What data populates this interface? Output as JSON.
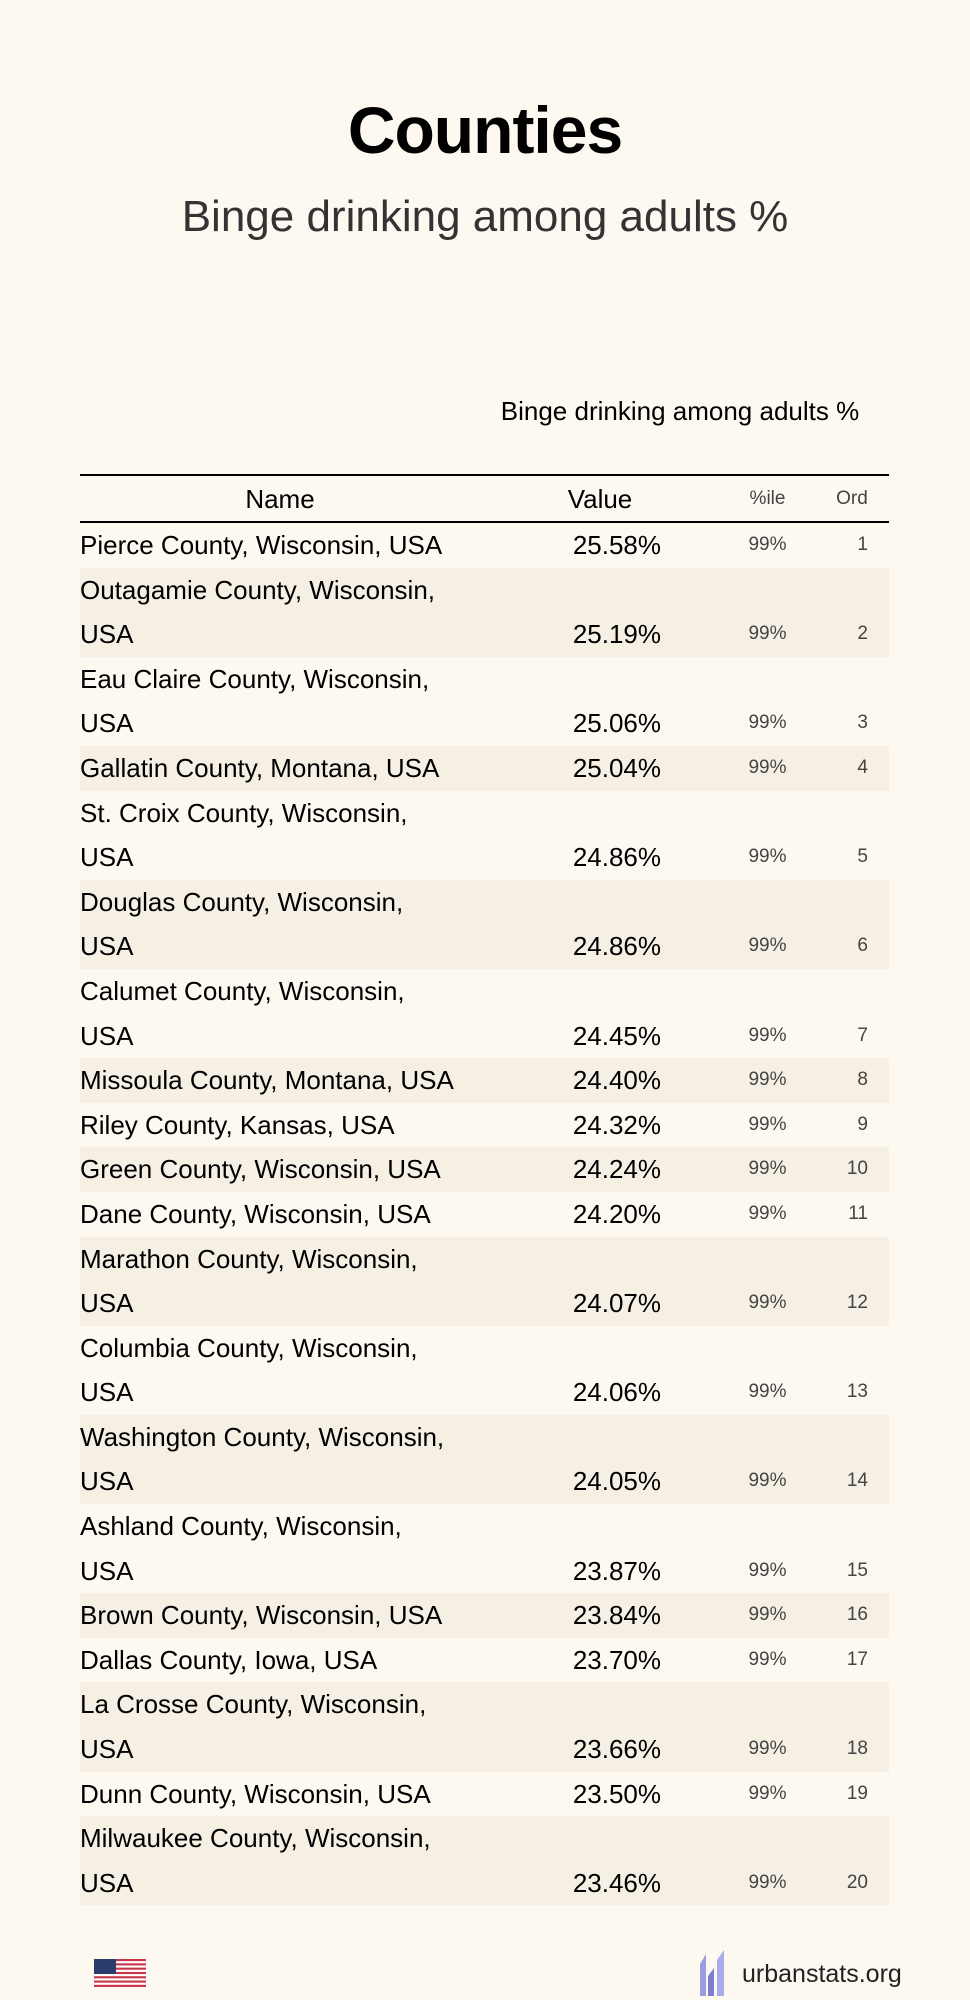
{
  "header": {
    "title": "Counties",
    "subtitle": "Binge drinking among adults %"
  },
  "table": {
    "stat_header": "Binge drinking among adults %",
    "columns": {
      "name": "Name",
      "value": "Value",
      "percentile": "%ile",
      "ordinal": "Ord"
    },
    "rows": [
      {
        "name": "Pierce County, Wisconsin, USA",
        "value": "25.58%",
        "percentile": "99%",
        "ord": "1"
      },
      {
        "name": "Outagamie County, Wisconsin, USA",
        "value": "25.19%",
        "percentile": "99%",
        "ord": "2"
      },
      {
        "name": "Eau Claire County, Wisconsin, USA",
        "value": "25.06%",
        "percentile": "99%",
        "ord": "3"
      },
      {
        "name": "Gallatin County, Montana, USA",
        "value": "25.04%",
        "percentile": "99%",
        "ord": "4"
      },
      {
        "name": "St. Croix County, Wisconsin, USA",
        "value": "24.86%",
        "percentile": "99%",
        "ord": "5"
      },
      {
        "name": "Douglas County, Wisconsin, USA",
        "value": "24.86%",
        "percentile": "99%",
        "ord": "6"
      },
      {
        "name": "Calumet County, Wisconsin, USA",
        "value": "24.45%",
        "percentile": "99%",
        "ord": "7"
      },
      {
        "name": "Missoula County, Montana, USA",
        "value": "24.40%",
        "percentile": "99%",
        "ord": "8"
      },
      {
        "name": "Riley County, Kansas, USA",
        "value": "24.32%",
        "percentile": "99%",
        "ord": "9"
      },
      {
        "name": "Green County, Wisconsin, USA",
        "value": "24.24%",
        "percentile": "99%",
        "ord": "10"
      },
      {
        "name": "Dane County, Wisconsin, USA",
        "value": "24.20%",
        "percentile": "99%",
        "ord": "11"
      },
      {
        "name": "Marathon County, Wisconsin, USA",
        "value": "24.07%",
        "percentile": "99%",
        "ord": "12"
      },
      {
        "name": "Columbia County, Wisconsin, USA",
        "value": "24.06%",
        "percentile": "99%",
        "ord": "13"
      },
      {
        "name": "Washington County, Wisconsin, USA",
        "value": "24.05%",
        "percentile": "99%",
        "ord": "14"
      },
      {
        "name": "Ashland County, Wisconsin, USA",
        "value": "23.87%",
        "percentile": "99%",
        "ord": "15"
      },
      {
        "name": "Brown County, Wisconsin, USA",
        "value": "23.84%",
        "percentile": "99%",
        "ord": "16"
      },
      {
        "name": "Dallas County, Iowa, USA",
        "value": "23.70%",
        "percentile": "99%",
        "ord": "17"
      },
      {
        "name": "La Crosse County, Wisconsin, USA",
        "value": "23.66%",
        "percentile": "99%",
        "ord": "18"
      },
      {
        "name": "Dunn County, Wisconsin, USA",
        "value": "23.50%",
        "percentile": "99%",
        "ord": "19"
      },
      {
        "name": "Milwaukee County, Wisconsin, USA",
        "value": "23.46%",
        "percentile": "99%",
        "ord": "20"
      }
    ]
  },
  "footer": {
    "flag_icon": "us-flag-icon",
    "logo_icon": "urbanstats-logo-icon",
    "site": "urbanstats.org"
  },
  "colors": {
    "background": "#fdf8f0",
    "alt_row": "#f6efe4",
    "logo": "#8c8fd6"
  }
}
